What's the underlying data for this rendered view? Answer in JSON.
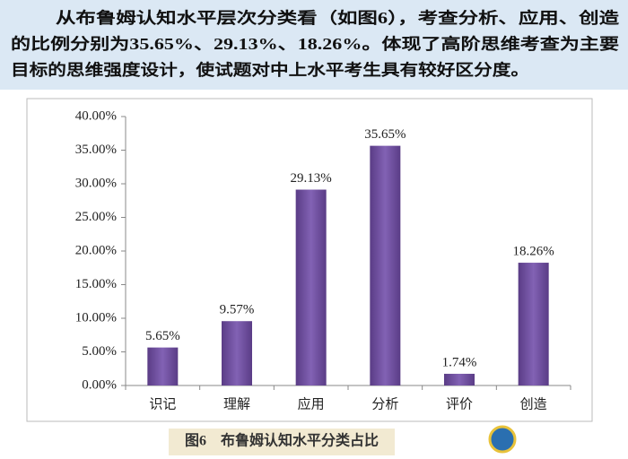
{
  "paragraph": {
    "lines": [
      "从布鲁姆认知水平层次分类看（如图6），考查分析、应用、创造",
      "的比例分别为35.65%、29.13%、18.26%。体现了高阶思维考查为主要",
      "目标的思维强度设计，使试题对中上水平考生具有较好区分度。"
    ]
  },
  "chart_data": {
    "type": "bar",
    "title": "图6　布鲁姆认知水平分类占比",
    "categories": [
      "识记",
      "理解",
      "应用",
      "分析",
      "评价",
      "创造"
    ],
    "values": [
      5.65,
      9.57,
      29.13,
      35.65,
      1.74,
      18.26
    ],
    "value_labels": [
      "5.65%",
      "9.57%",
      "29.13%",
      "35.65%",
      "1.74%",
      "18.26%"
    ],
    "color": "#6a4a98",
    "ylim": [
      0,
      40
    ],
    "yticks": [
      {
        "value": 0,
        "label": "0.00%"
      },
      {
        "value": 5,
        "label": "5.00%"
      },
      {
        "value": 10,
        "label": "10.00%"
      },
      {
        "value": 15,
        "label": "15.00%"
      },
      {
        "value": 20,
        "label": "20.00%"
      },
      {
        "value": 25,
        "label": "25.00%"
      },
      {
        "value": 30,
        "label": "30.00%"
      },
      {
        "value": 35,
        "label": "35.00%"
      },
      {
        "value": 40,
        "label": "40.00%"
      }
    ],
    "grid": false
  }
}
